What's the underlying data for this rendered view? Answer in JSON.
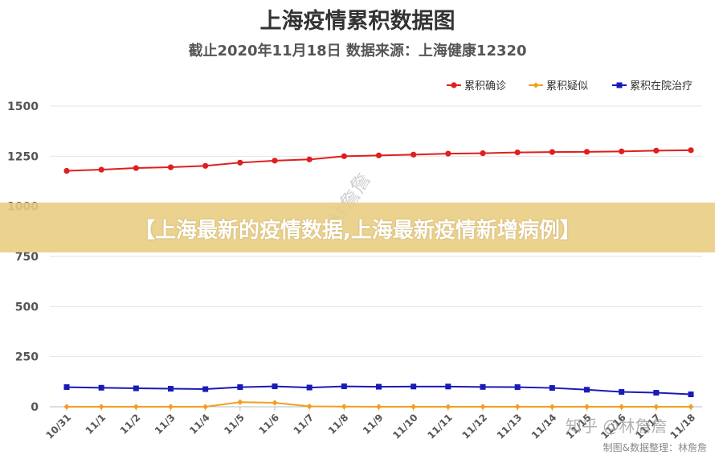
{
  "title": "上海疫情累积数据图",
  "subtitle": "截止2020年11月18日 数据来源：上海健康12320",
  "banner": "【上海最新的疫情数据,上海最新疫情新增病例】",
  "watermark_diagonal": "林詹詹",
  "watermark_zhihu": "知乎 @林詹詹",
  "credit": "制图&数据整理：林詹詹",
  "chart_data": {
    "type": "line",
    "categories": [
      "10/31",
      "11/1",
      "11/2",
      "11/3",
      "11/4",
      "11/5",
      "11/6",
      "11/7",
      "11/8",
      "11/9",
      "11/10",
      "11/11",
      "11/12",
      "11/13",
      "11/14",
      "11/15",
      "11/16",
      "11/17",
      "11/18"
    ],
    "series": [
      {
        "name": "累积确诊",
        "color": "#e01e1e",
        "marker": "circle",
        "values": [
          1177,
          1183,
          1191,
          1195,
          1202,
          1218,
          1228,
          1234,
          1250,
          1254,
          1258,
          1263,
          1265,
          1269,
          1271,
          1272,
          1274,
          1278,
          1280
        ]
      },
      {
        "name": "累积疑似",
        "color": "#f0a020",
        "marker": "diamond",
        "values": [
          0,
          0,
          0,
          0,
          0,
          23,
          20,
          2,
          1,
          0,
          0,
          0,
          0,
          0,
          0,
          0,
          0,
          0,
          0
        ]
      },
      {
        "name": "累积在院治疗",
        "color": "#1a1ab8",
        "marker": "square",
        "values": [
          98,
          95,
          92,
          90,
          88,
          98,
          102,
          96,
          102,
          100,
          101,
          101,
          99,
          98,
          94,
          85,
          74,
          70,
          62
        ]
      }
    ],
    "yticks": [
      0,
      250,
      500,
      750,
      1000,
      1250,
      1500
    ],
    "ylim": [
      0,
      1500
    ],
    "grid": true,
    "legend_position": "top-right"
  }
}
